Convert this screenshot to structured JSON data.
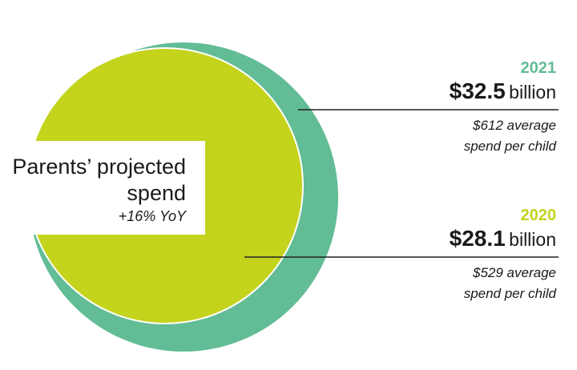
{
  "colors": {
    "outer": "#62bc95",
    "inner": "#c4d31c",
    "year2021": "#62bc95",
    "year2020": "#c4d31c",
    "line": "#222222"
  },
  "chart_data": {
    "type": "bubble",
    "title": "Parents’ projected spend",
    "subtitle": "+16% YoY",
    "series": [
      {
        "year": "2021",
        "amount": "$32.5",
        "unit": "billion",
        "value": 32.5,
        "note_line1": "$612 average",
        "note_line2": "spend per child"
      },
      {
        "year": "2020",
        "amount": "$28.1",
        "unit": "billion",
        "value": 28.1,
        "note_line1": "$529 average",
        "note_line2": "spend per child"
      }
    ]
  }
}
